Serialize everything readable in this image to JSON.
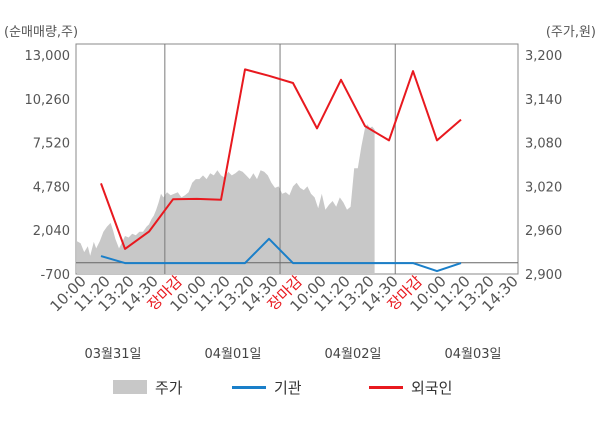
{
  "chart_data": {
    "type": "line",
    "left_axis_unit": "(순매매량,주)",
    "right_axis_unit": "(주가,원)",
    "left_ticks": [
      "13,000",
      "10,260",
      "7,520",
      "4,780",
      "2,040",
      "-700"
    ],
    "left_tick_values": [
      13000,
      10260,
      7520,
      4780,
      2040,
      -700
    ],
    "right_ticks": [
      "3,200",
      "3,140",
      "3,080",
      "3,020",
      "2,960",
      "2,900"
    ],
    "right_tick_values": [
      3200,
      3140,
      3080,
      3020,
      2960,
      2900
    ],
    "left_ylim": [
      -700,
      13000
    ],
    "right_ylim": [
      2900,
      3200
    ],
    "x_ticks": [
      {
        "label": "10:00",
        "closing": false
      },
      {
        "label": "11:20",
        "closing": false
      },
      {
        "label": "13:20",
        "closing": false
      },
      {
        "label": "14:30",
        "closing": false
      },
      {
        "label": "장마감",
        "closing": true
      },
      {
        "label": "10:00",
        "closing": false
      },
      {
        "label": "11:20",
        "closing": false
      },
      {
        "label": "13:20",
        "closing": false
      },
      {
        "label": "14:30",
        "closing": false
      },
      {
        "label": "장마감",
        "closing": true
      },
      {
        "label": "10:00",
        "closing": false
      },
      {
        "label": "11:20",
        "closing": false
      },
      {
        "label": "13:20",
        "closing": false
      },
      {
        "label": "14:30",
        "closing": false
      },
      {
        "label": "장마감",
        "closing": true
      },
      {
        "label": "10:00",
        "closing": false
      },
      {
        "label": "11:20",
        "closing": false
      },
      {
        "label": "13:20",
        "closing": false
      },
      {
        "label": "14:30",
        "closing": false
      }
    ],
    "dates": [
      "03월31일",
      "04월01일",
      "04월02일",
      "04월03일"
    ],
    "date_tick_index": [
      1.5,
      6.5,
      11.5,
      16.5
    ],
    "day_separators": [
      3.66,
      8.46,
      13.26
    ],
    "grid": false,
    "legend_position": "bottom",
    "series": [
      {
        "name": "주가",
        "kind": "area",
        "axis": "right",
        "color": "#c8c8c8",
        "x": [
          0,
          0.15,
          0.3,
          0.45,
          0.55,
          0.7,
          0.8,
          0.95,
          1.1,
          1.25,
          1.4,
          1.5,
          1.6,
          1.75,
          1.9,
          2.0,
          2.15,
          2.3,
          2.45,
          2.6,
          2.75,
          2.9,
          3.0,
          3.1,
          3.2,
          3.3,
          3.4,
          3.5,
          3.6,
          3.75,
          3.9,
          4.05,
          4.2,
          4.35,
          4.5,
          4.65,
          4.8,
          4.95,
          5.1,
          5.25,
          5.4,
          5.55,
          5.7,
          5.85,
          6.0,
          6.15,
          6.3,
          6.45,
          6.6,
          6.75,
          6.9,
          7.05,
          7.2,
          7.35,
          7.5,
          7.65,
          7.8,
          7.95,
          8.1,
          8.25,
          8.4,
          8.55,
          8.7,
          8.85,
          9.0,
          9.15,
          9.3,
          9.45,
          9.6,
          9.75,
          9.9,
          10.05,
          10.2,
          10.35,
          10.5,
          10.65,
          10.8,
          10.95,
          11.1,
          11.25,
          11.4,
          11.55,
          11.7,
          11.85,
          12.0,
          12.1,
          12.2,
          12.3,
          12.4
        ],
        "values": [
          2945,
          2942,
          2930,
          2938,
          2925,
          2944,
          2935,
          2945,
          2958,
          2965,
          2970,
          2960,
          2948,
          2935,
          2945,
          2952,
          2950,
          2955,
          2953,
          2958,
          2958,
          2965,
          2968,
          2975,
          2980,
          2988,
          2998,
          3010,
          3005,
          3012,
          3008,
          3010,
          3012,
          3005,
          3008,
          3012,
          3025,
          3030,
          3030,
          3035,
          3030,
          3038,
          3035,
          3042,
          3035,
          3032,
          3040,
          3035,
          3038,
          3042,
          3040,
          3035,
          3030,
          3038,
          3030,
          3042,
          3040,
          3035,
          3025,
          3018,
          3020,
          3010,
          3012,
          3008,
          3020,
          3025,
          3018,
          3015,
          3020,
          3010,
          3005,
          2990,
          3010,
          2988,
          2995,
          3000,
          2992,
          3005,
          2998,
          2988,
          2992,
          3045,
          3045,
          3075,
          3100,
          3105,
          3100,
          3102,
          3098
        ]
      },
      {
        "name": "기관",
        "kind": "line",
        "axis": "left",
        "color": "#1a7fc9",
        "x": [
          1,
          2,
          4,
          5,
          6,
          7,
          8,
          9,
          10,
          11,
          12,
          13,
          14,
          15,
          16
        ],
        "values": [
          420,
          -20,
          -20,
          -20,
          -20,
          -20,
          1500,
          -20,
          -20,
          -20,
          -20,
          -20,
          -20,
          -520,
          -20
        ]
      },
      {
        "name": "외국인",
        "kind": "line",
        "axis": "left",
        "color": "#e8191f",
        "x": [
          1,
          2,
          3,
          4,
          5,
          6,
          7,
          8,
          9,
          10,
          11,
          12,
          13,
          14,
          15,
          16
        ],
        "values": [
          4970,
          870,
          1950,
          3970,
          4000,
          3940,
          12100,
          11700,
          11250,
          8410,
          11450,
          8550,
          7660,
          11990,
          7660,
          8960
        ]
      }
    ]
  },
  "legend": [
    {
      "label": "주가",
      "swatch": "area",
      "color": "#c8c8c8"
    },
    {
      "label": "기관",
      "swatch": "line",
      "color": "#1a7fc9"
    },
    {
      "label": "외국인",
      "swatch": "line",
      "color": "#e8191f"
    }
  ]
}
